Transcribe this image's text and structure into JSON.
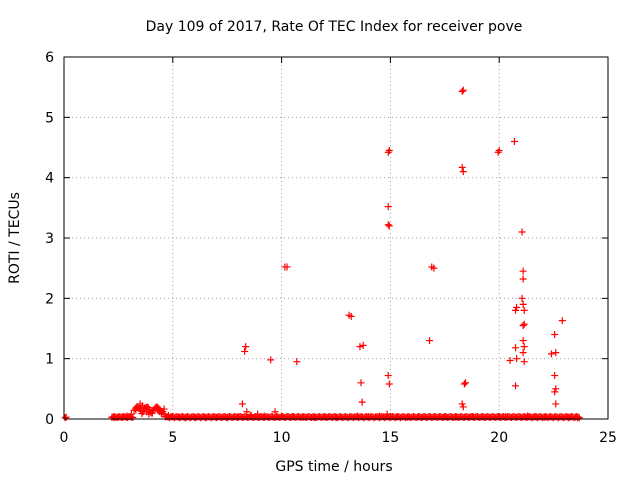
{
  "chart_data": {
    "type": "scatter",
    "title": "Day 109 of 2017, Rate Of TEC Index for receiver pove",
    "xlabel": "GPS time / hours",
    "ylabel": "ROTI / TECUs",
    "xlim": [
      0,
      25
    ],
    "ylim": [
      0,
      6
    ],
    "xticks": [
      "0",
      "5",
      "10",
      "15",
      "20",
      "25"
    ],
    "yticks": [
      "0",
      "1",
      "2",
      "3",
      "4",
      "5",
      "6"
    ],
    "grid": true,
    "marker": "plus",
    "color": "#ff0000",
    "series": [
      {
        "name": "ROTI",
        "points": [
          [
            0.05,
            0.02
          ],
          [
            0.1,
            0.03
          ],
          [
            2.3,
            0.02
          ],
          [
            2.5,
            0.03
          ],
          [
            2.7,
            0.04
          ],
          [
            2.9,
            0.05
          ],
          [
            3.1,
            0.08
          ],
          [
            3.3,
            0.15
          ],
          [
            3.4,
            0.2
          ],
          [
            3.5,
            0.25
          ],
          [
            3.6,
            0.22
          ],
          [
            3.7,
            0.18
          ],
          [
            3.8,
            0.12
          ],
          [
            3.9,
            0.08
          ],
          [
            4.0,
            0.1
          ],
          [
            4.1,
            0.14
          ],
          [
            4.2,
            0.18
          ],
          [
            4.3,
            0.15
          ],
          [
            4.4,
            0.12
          ],
          [
            4.5,
            0.1
          ],
          [
            4.6,
            0.08
          ],
          [
            4.8,
            0.06
          ],
          [
            5.0,
            0.04
          ],
          [
            5.3,
            0.03
          ],
          [
            5.6,
            0.02
          ],
          [
            6.0,
            0.03
          ],
          [
            6.5,
            0.02
          ],
          [
            7.0,
            0.03
          ],
          [
            7.5,
            0.02
          ],
          [
            8.0,
            0.04
          ],
          [
            8.2,
            0.25
          ],
          [
            8.3,
            1.12
          ],
          [
            8.35,
            1.2
          ],
          [
            8.4,
            0.12
          ],
          [
            8.6,
            0.06
          ],
          [
            8.9,
            0.08
          ],
          [
            9.2,
            0.05
          ],
          [
            9.5,
            0.98
          ],
          [
            9.7,
            0.12
          ],
          [
            10.0,
            0.05
          ],
          [
            10.15,
            2.52
          ],
          [
            10.25,
            2.52
          ],
          [
            10.5,
            0.04
          ],
          [
            10.7,
            0.95
          ],
          [
            11.0,
            0.03
          ],
          [
            11.5,
            0.02
          ],
          [
            12.0,
            0.03
          ],
          [
            12.5,
            0.02
          ],
          [
            13.1,
            1.72
          ],
          [
            13.2,
            1.7
          ],
          [
            13.5,
            0.05
          ],
          [
            13.6,
            1.2
          ],
          [
            13.65,
            0.6
          ],
          [
            13.7,
            0.28
          ],
          [
            13.75,
            1.22
          ],
          [
            14.0,
            0.04
          ],
          [
            14.5,
            0.05
          ],
          [
            14.85,
            0.08
          ],
          [
            14.9,
            4.42
          ],
          [
            14.95,
            4.45
          ],
          [
            14.9,
            3.52
          ],
          [
            14.9,
            3.22
          ],
          [
            14.95,
            3.2
          ],
          [
            14.9,
            0.72
          ],
          [
            14.95,
            0.58
          ],
          [
            15.3,
            0.04
          ],
          [
            15.8,
            0.03
          ],
          [
            16.3,
            0.04
          ],
          [
            16.8,
            1.3
          ],
          [
            16.9,
            2.52
          ],
          [
            17.0,
            2.5
          ],
          [
            17.5,
            0.04
          ],
          [
            18.0,
            0.03
          ],
          [
            18.3,
            5.43
          ],
          [
            18.35,
            5.45
          ],
          [
            18.3,
            4.17
          ],
          [
            18.35,
            4.1
          ],
          [
            18.3,
            0.25
          ],
          [
            18.35,
            0.2
          ],
          [
            18.4,
            0.58
          ],
          [
            18.45,
            0.6
          ],
          [
            18.8,
            0.04
          ],
          [
            19.3,
            0.03
          ],
          [
            19.95,
            4.42
          ],
          [
            20.0,
            4.45
          ],
          [
            20.3,
            0.04
          ],
          [
            20.5,
            0.97
          ],
          [
            20.7,
            4.6
          ],
          [
            20.75,
            1.8
          ],
          [
            20.8,
            1.85
          ],
          [
            20.75,
            1.18
          ],
          [
            20.8,
            1.0
          ],
          [
            20.75,
            0.55
          ],
          [
            21.05,
            3.1
          ],
          [
            21.1,
            2.45
          ],
          [
            21.1,
            2.32
          ],
          [
            21.05,
            2.0
          ],
          [
            21.15,
            1.8
          ],
          [
            21.1,
            1.9
          ],
          [
            21.1,
            1.55
          ],
          [
            21.15,
            1.57
          ],
          [
            21.1,
            1.3
          ],
          [
            21.15,
            1.2
          ],
          [
            21.1,
            1.1
          ],
          [
            21.15,
            0.95
          ],
          [
            21.3,
            0.05
          ],
          [
            21.7,
            0.04
          ],
          [
            22.1,
            0.03
          ],
          [
            22.4,
            1.08
          ],
          [
            22.55,
            1.4
          ],
          [
            22.6,
            1.1
          ],
          [
            22.55,
            0.72
          ],
          [
            22.6,
            0.5
          ],
          [
            22.55,
            0.45
          ],
          [
            22.6,
            0.25
          ],
          [
            22.9,
            1.63
          ],
          [
            23.2,
            0.03
          ],
          [
            23.6,
            0.02
          ]
        ]
      }
    ]
  }
}
